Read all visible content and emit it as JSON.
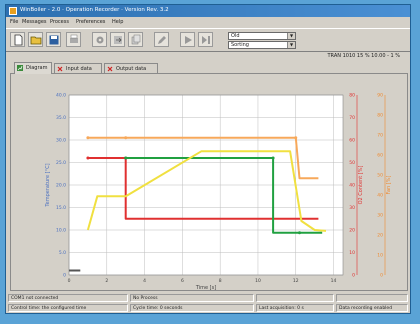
{
  "title": "WinBoiler - 2.0 · Operation Recorder · Version Rev. 3.2",
  "menu": [
    "File",
    "Messages",
    "Process",
    "Preferences",
    "Help"
  ],
  "selects": {
    "top": "Old",
    "bottom": "Sorting"
  },
  "status_right": "TRAN 1010 15 %   10.00 - 1 %",
  "tabs": [
    "Diagram",
    "Input data",
    "Output data"
  ],
  "chart_data": {
    "type": "line",
    "xlabel": "Time [s]",
    "ylabel_left": "Temperature [°C]",
    "ylabel_right1": "O2 Content [%]",
    "ylabel_right2": "Fan [%]",
    "x_ticks": [
      "0",
      "2",
      "4",
      "6",
      "8",
      "10",
      "12",
      "14"
    ],
    "left_ticks": [
      "0",
      "5.0",
      "10.0",
      "15.0",
      "20.0",
      "25.0",
      "30.0",
      "35.0",
      "40.0"
    ],
    "right1_ticks": [
      "0",
      "10",
      "20",
      "30",
      "40",
      "50",
      "60",
      "70",
      "80"
    ],
    "right2_ticks": [
      "0",
      "10",
      "20",
      "30",
      "40",
      "50",
      "60",
      "70",
      "80",
      "90"
    ],
    "xlim": [
      0,
      14.5
    ],
    "ylim": [
      0,
      40
    ],
    "series": [
      {
        "color": "#f7a85a",
        "points": [
          [
            1,
            30.5
          ],
          [
            12,
            30.5
          ],
          [
            12.2,
            21.5
          ],
          [
            13.2,
            21.5
          ]
        ],
        "markers": [
          [
            1,
            30.5
          ],
          [
            3,
            30.5
          ],
          [
            12,
            30.5
          ]
        ]
      },
      {
        "color": "#e03030",
        "points": [
          [
            1,
            26
          ],
          [
            3,
            26
          ],
          [
            3,
            12.5
          ],
          [
            13.2,
            12.5
          ]
        ],
        "markers": [
          [
            1,
            26
          ],
          [
            3,
            26
          ]
        ]
      },
      {
        "color": "#20a040",
        "points": [
          [
            3,
            26
          ],
          [
            10.8,
            26
          ],
          [
            10.8,
            9.4
          ],
          [
            13.4,
            9.4
          ]
        ],
        "markers": [
          [
            3,
            26
          ],
          [
            10.8,
            26
          ],
          [
            12.2,
            9.4
          ]
        ]
      },
      {
        "color": "#f0e040",
        "points": [
          [
            1,
            10
          ],
          [
            1.5,
            17.5
          ],
          [
            3,
            17.5
          ],
          [
            7,
            27.5
          ],
          [
            11.7,
            27.5
          ],
          [
            12.3,
            12
          ],
          [
            13,
            10
          ],
          [
            13.6,
            9.8
          ]
        ],
        "markers": []
      },
      {
        "color": "#555555",
        "points": [
          [
            0,
            1
          ],
          [
            0.6,
            1
          ]
        ],
        "markers": []
      }
    ]
  },
  "statusbar": {
    "r1": [
      "COM1 not connected",
      "No Process",
      "",
      ""
    ],
    "r2": [
      "Control time: the configured time",
      "Cycle time: 0 seconds",
      "Last acquisition: 0 s",
      "Data recording enabled"
    ]
  }
}
